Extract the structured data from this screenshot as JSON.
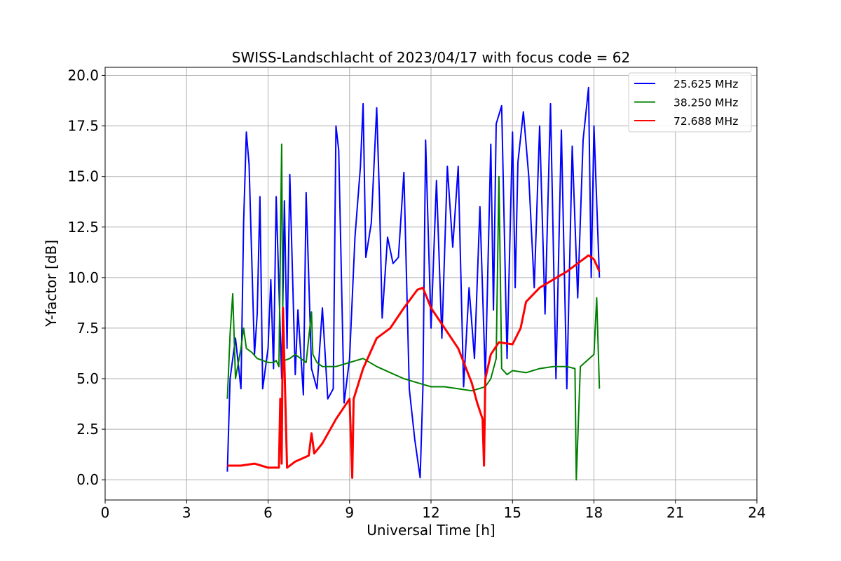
{
  "chart_data": {
    "type": "line",
    "title": "SWISS-Landschlacht of 2023/04/17 with focus code = 62",
    "xlabel": "Universal Time [h]",
    "ylabel": "Y-factor [dB]",
    "xlim": [
      0,
      24
    ],
    "ylim": [
      -1.0,
      20.4
    ],
    "xticks": [
      0,
      3,
      6,
      9,
      12,
      15,
      18,
      21,
      24
    ],
    "yticks": [
      0.0,
      2.5,
      5.0,
      7.5,
      10.0,
      12.5,
      15.0,
      17.5,
      20.0
    ],
    "xtick_labels": [
      "0",
      "3",
      "6",
      "9",
      "12",
      "15",
      "18",
      "21",
      "24"
    ],
    "ytick_labels": [
      "0.0",
      "2.5",
      "5.0",
      "7.5",
      "10.0",
      "12.5",
      "15.0",
      "17.5",
      "20.0"
    ],
    "grid": true,
    "legend_position": "top-right",
    "series": [
      {
        "name": "25.625 MHz",
        "color": "#0000ff",
        "x": [
          4.5,
          4.6,
          4.8,
          5.0,
          5.1,
          5.2,
          5.3,
          5.5,
          5.6,
          5.7,
          5.8,
          6.0,
          6.1,
          6.2,
          6.3,
          6.5,
          6.6,
          6.7,
          6.8,
          7.0,
          7.1,
          7.3,
          7.4,
          7.6,
          7.8,
          8.0,
          8.2,
          8.4,
          8.5,
          8.6,
          8.8,
          9.0,
          9.2,
          9.4,
          9.5,
          9.6,
          9.8,
          10.0,
          10.1,
          10.2,
          10.4,
          10.6,
          10.8,
          11.0,
          11.2,
          11.4,
          11.6,
          11.7,
          11.8,
          12.0,
          12.2,
          12.4,
          12.6,
          12.8,
          13.0,
          13.2,
          13.4,
          13.6,
          13.8,
          14.0,
          14.2,
          14.3,
          14.4,
          14.6,
          14.8,
          15.0,
          15.1,
          15.2,
          15.4,
          15.6,
          15.8,
          16.0,
          16.2,
          16.4,
          16.6,
          16.8,
          17.0,
          17.2,
          17.4,
          17.6,
          17.8,
          17.9,
          18.0,
          18.2
        ],
        "y": [
          0.4,
          5.0,
          7.0,
          4.5,
          12.7,
          17.2,
          15.6,
          6.2,
          8.2,
          14.0,
          4.5,
          6.5,
          9.9,
          5.5,
          14.0,
          5.0,
          13.8,
          6.5,
          15.1,
          5.2,
          8.4,
          4.2,
          14.2,
          5.5,
          4.5,
          8.5,
          4.0,
          4.5,
          17.5,
          16.3,
          3.8,
          6.0,
          12.0,
          15.5,
          18.6,
          11.0,
          12.7,
          18.4,
          14.0,
          8.0,
          12.0,
          10.7,
          11.0,
          15.2,
          4.5,
          2.0,
          0.1,
          4.5,
          16.8,
          7.5,
          14.8,
          7.0,
          15.5,
          11.5,
          15.5,
          4.6,
          9.5,
          6.0,
          13.5,
          5.0,
          16.6,
          8.4,
          17.6,
          18.5,
          6.0,
          17.2,
          9.5,
          15.7,
          18.2,
          15.0,
          9.5,
          17.5,
          8.2,
          18.6,
          5.0,
          17.3,
          4.5,
          16.5,
          9.0,
          16.8,
          19.4,
          10.0,
          17.5,
          10.0
        ]
      },
      {
        "name": "38.250 MHz",
        "color": "#008000",
        "x": [
          4.5,
          4.6,
          4.7,
          4.8,
          5.0,
          5.1,
          5.2,
          5.4,
          5.6,
          5.8,
          6.0,
          6.2,
          6.3,
          6.4,
          6.5,
          6.55,
          6.6,
          6.8,
          7.0,
          7.2,
          7.4,
          7.6,
          7.65,
          7.8,
          8.0,
          8.5,
          9.0,
          9.5,
          10.0,
          10.5,
          11.0,
          11.5,
          12.0,
          12.5,
          13.0,
          13.5,
          14.0,
          14.2,
          14.4,
          14.5,
          14.6,
          14.8,
          15.0,
          15.5,
          16.0,
          16.5,
          17.0,
          17.3,
          17.35,
          17.5,
          18.0,
          18.1,
          18.2
        ],
        "y": [
          4.0,
          7.2,
          9.2,
          5.0,
          6.5,
          7.5,
          6.5,
          6.3,
          6.0,
          5.9,
          5.8,
          5.8,
          5.9,
          5.6,
          16.6,
          7.0,
          5.9,
          6.0,
          6.2,
          6.0,
          5.8,
          8.3,
          6.2,
          5.8,
          5.6,
          5.6,
          5.8,
          6.0,
          5.6,
          5.3,
          5.0,
          4.8,
          4.6,
          4.6,
          4.5,
          4.4,
          4.6,
          5.0,
          6.0,
          15.0,
          5.5,
          5.2,
          5.4,
          5.3,
          5.5,
          5.6,
          5.6,
          5.5,
          0.0,
          5.6,
          6.2,
          9.0,
          4.5
        ]
      },
      {
        "name": "72.688 MHz",
        "color": "#ff0000",
        "x": [
          4.5,
          5.0,
          5.5,
          6.0,
          6.4,
          6.45,
          6.5,
          6.55,
          6.7,
          7.0,
          7.5,
          7.6,
          7.7,
          8.0,
          8.5,
          9.0,
          9.1,
          9.15,
          9.5,
          10.0,
          10.5,
          11.0,
          11.5,
          11.7,
          12.0,
          12.5,
          13.0,
          13.5,
          13.7,
          13.9,
          13.95,
          14.0,
          14.2,
          14.5,
          15.0,
          15.3,
          15.5,
          16.0,
          16.5,
          17.0,
          17.5,
          17.8,
          18.0,
          18.2
        ],
        "y": [
          0.7,
          0.7,
          0.8,
          0.6,
          0.6,
          4.0,
          0.8,
          8.5,
          0.6,
          0.9,
          1.2,
          2.3,
          1.3,
          1.8,
          3.0,
          4.0,
          0.1,
          4.0,
          5.5,
          7.0,
          7.5,
          8.5,
          9.4,
          9.5,
          8.5,
          7.5,
          6.5,
          4.8,
          3.8,
          3.0,
          0.7,
          5.0,
          6.2,
          6.8,
          6.7,
          7.5,
          8.8,
          9.5,
          9.9,
          10.3,
          10.8,
          11.1,
          10.9,
          10.3
        ]
      }
    ]
  }
}
